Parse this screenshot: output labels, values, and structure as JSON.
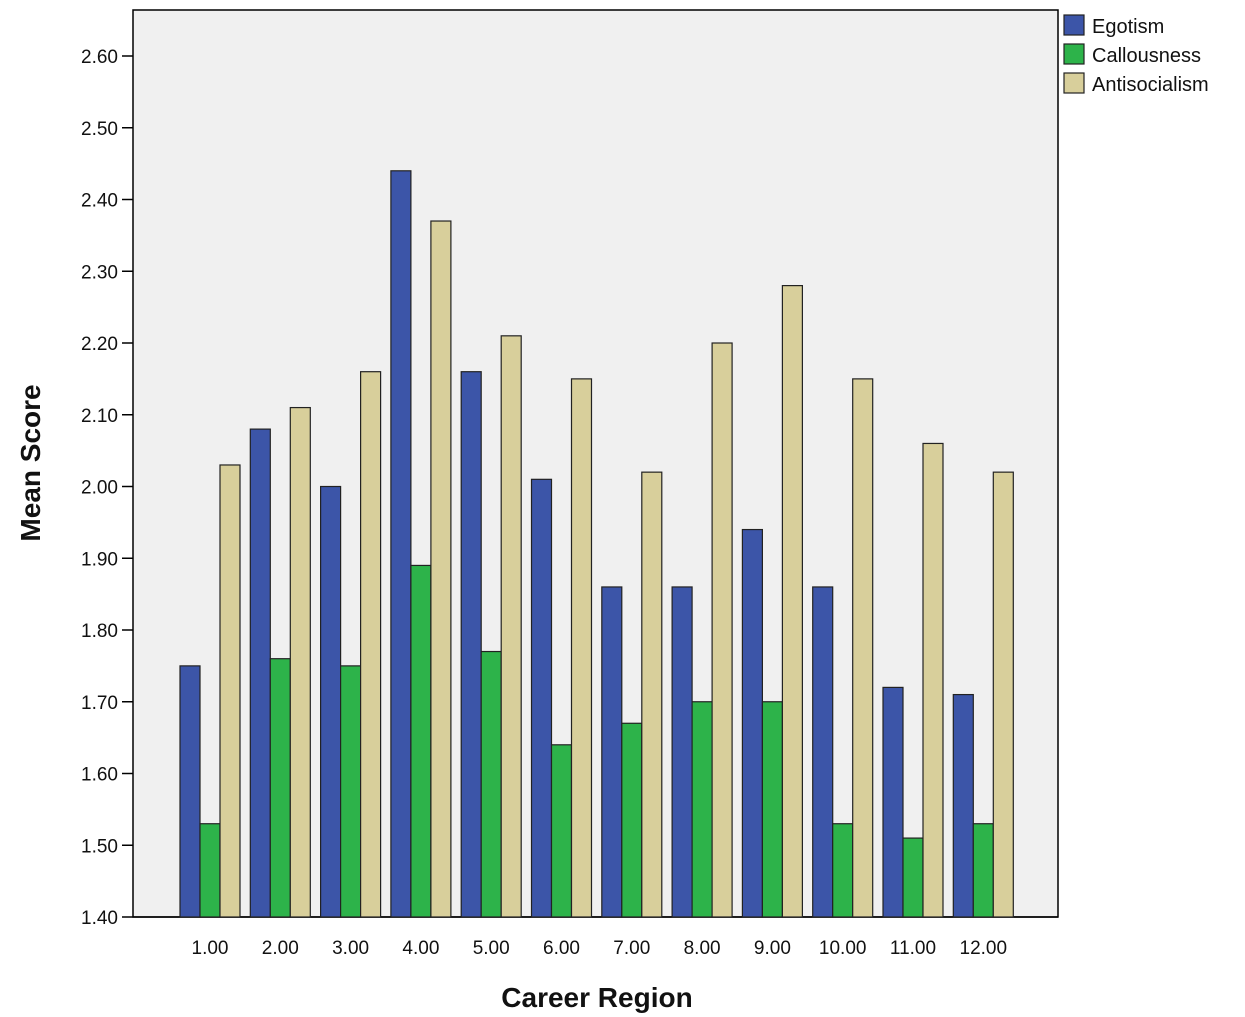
{
  "chart_data": {
    "type": "bar",
    "title": "",
    "xlabel": "Career Region",
    "ylabel": "Mean Score",
    "ylim": [
      1.4,
      2.65
    ],
    "yticks": [
      "1.40",
      "1.50",
      "1.60",
      "1.70",
      "1.80",
      "1.90",
      "2.00",
      "2.10",
      "2.20",
      "2.30",
      "2.40",
      "2.50",
      "2.60"
    ],
    "categories": [
      "1.00",
      "2.00",
      "3.00",
      "4.00",
      "5.00",
      "6.00",
      "7.00",
      "8.00",
      "9.00",
      "10.00",
      "11.00",
      "12.00"
    ],
    "series": [
      {
        "name": "Egotism",
        "color": "#3c55a8",
        "values": [
          1.75,
          2.08,
          2.0,
          2.44,
          2.16,
          2.01,
          1.86,
          1.86,
          1.94,
          1.86,
          1.72,
          1.71
        ]
      },
      {
        "name": "Callousness",
        "color": "#2db34a",
        "values": [
          1.53,
          1.76,
          1.75,
          1.89,
          1.77,
          1.64,
          1.67,
          1.7,
          1.7,
          1.53,
          1.51,
          1.53
        ]
      },
      {
        "name": "Antisocialism",
        "color": "#d8cf9b",
        "values": [
          2.03,
          2.11,
          2.16,
          2.37,
          2.21,
          2.15,
          2.02,
          2.2,
          2.28,
          2.15,
          2.06,
          2.02
        ]
      }
    ],
    "grid": false,
    "legend": "top-right"
  }
}
